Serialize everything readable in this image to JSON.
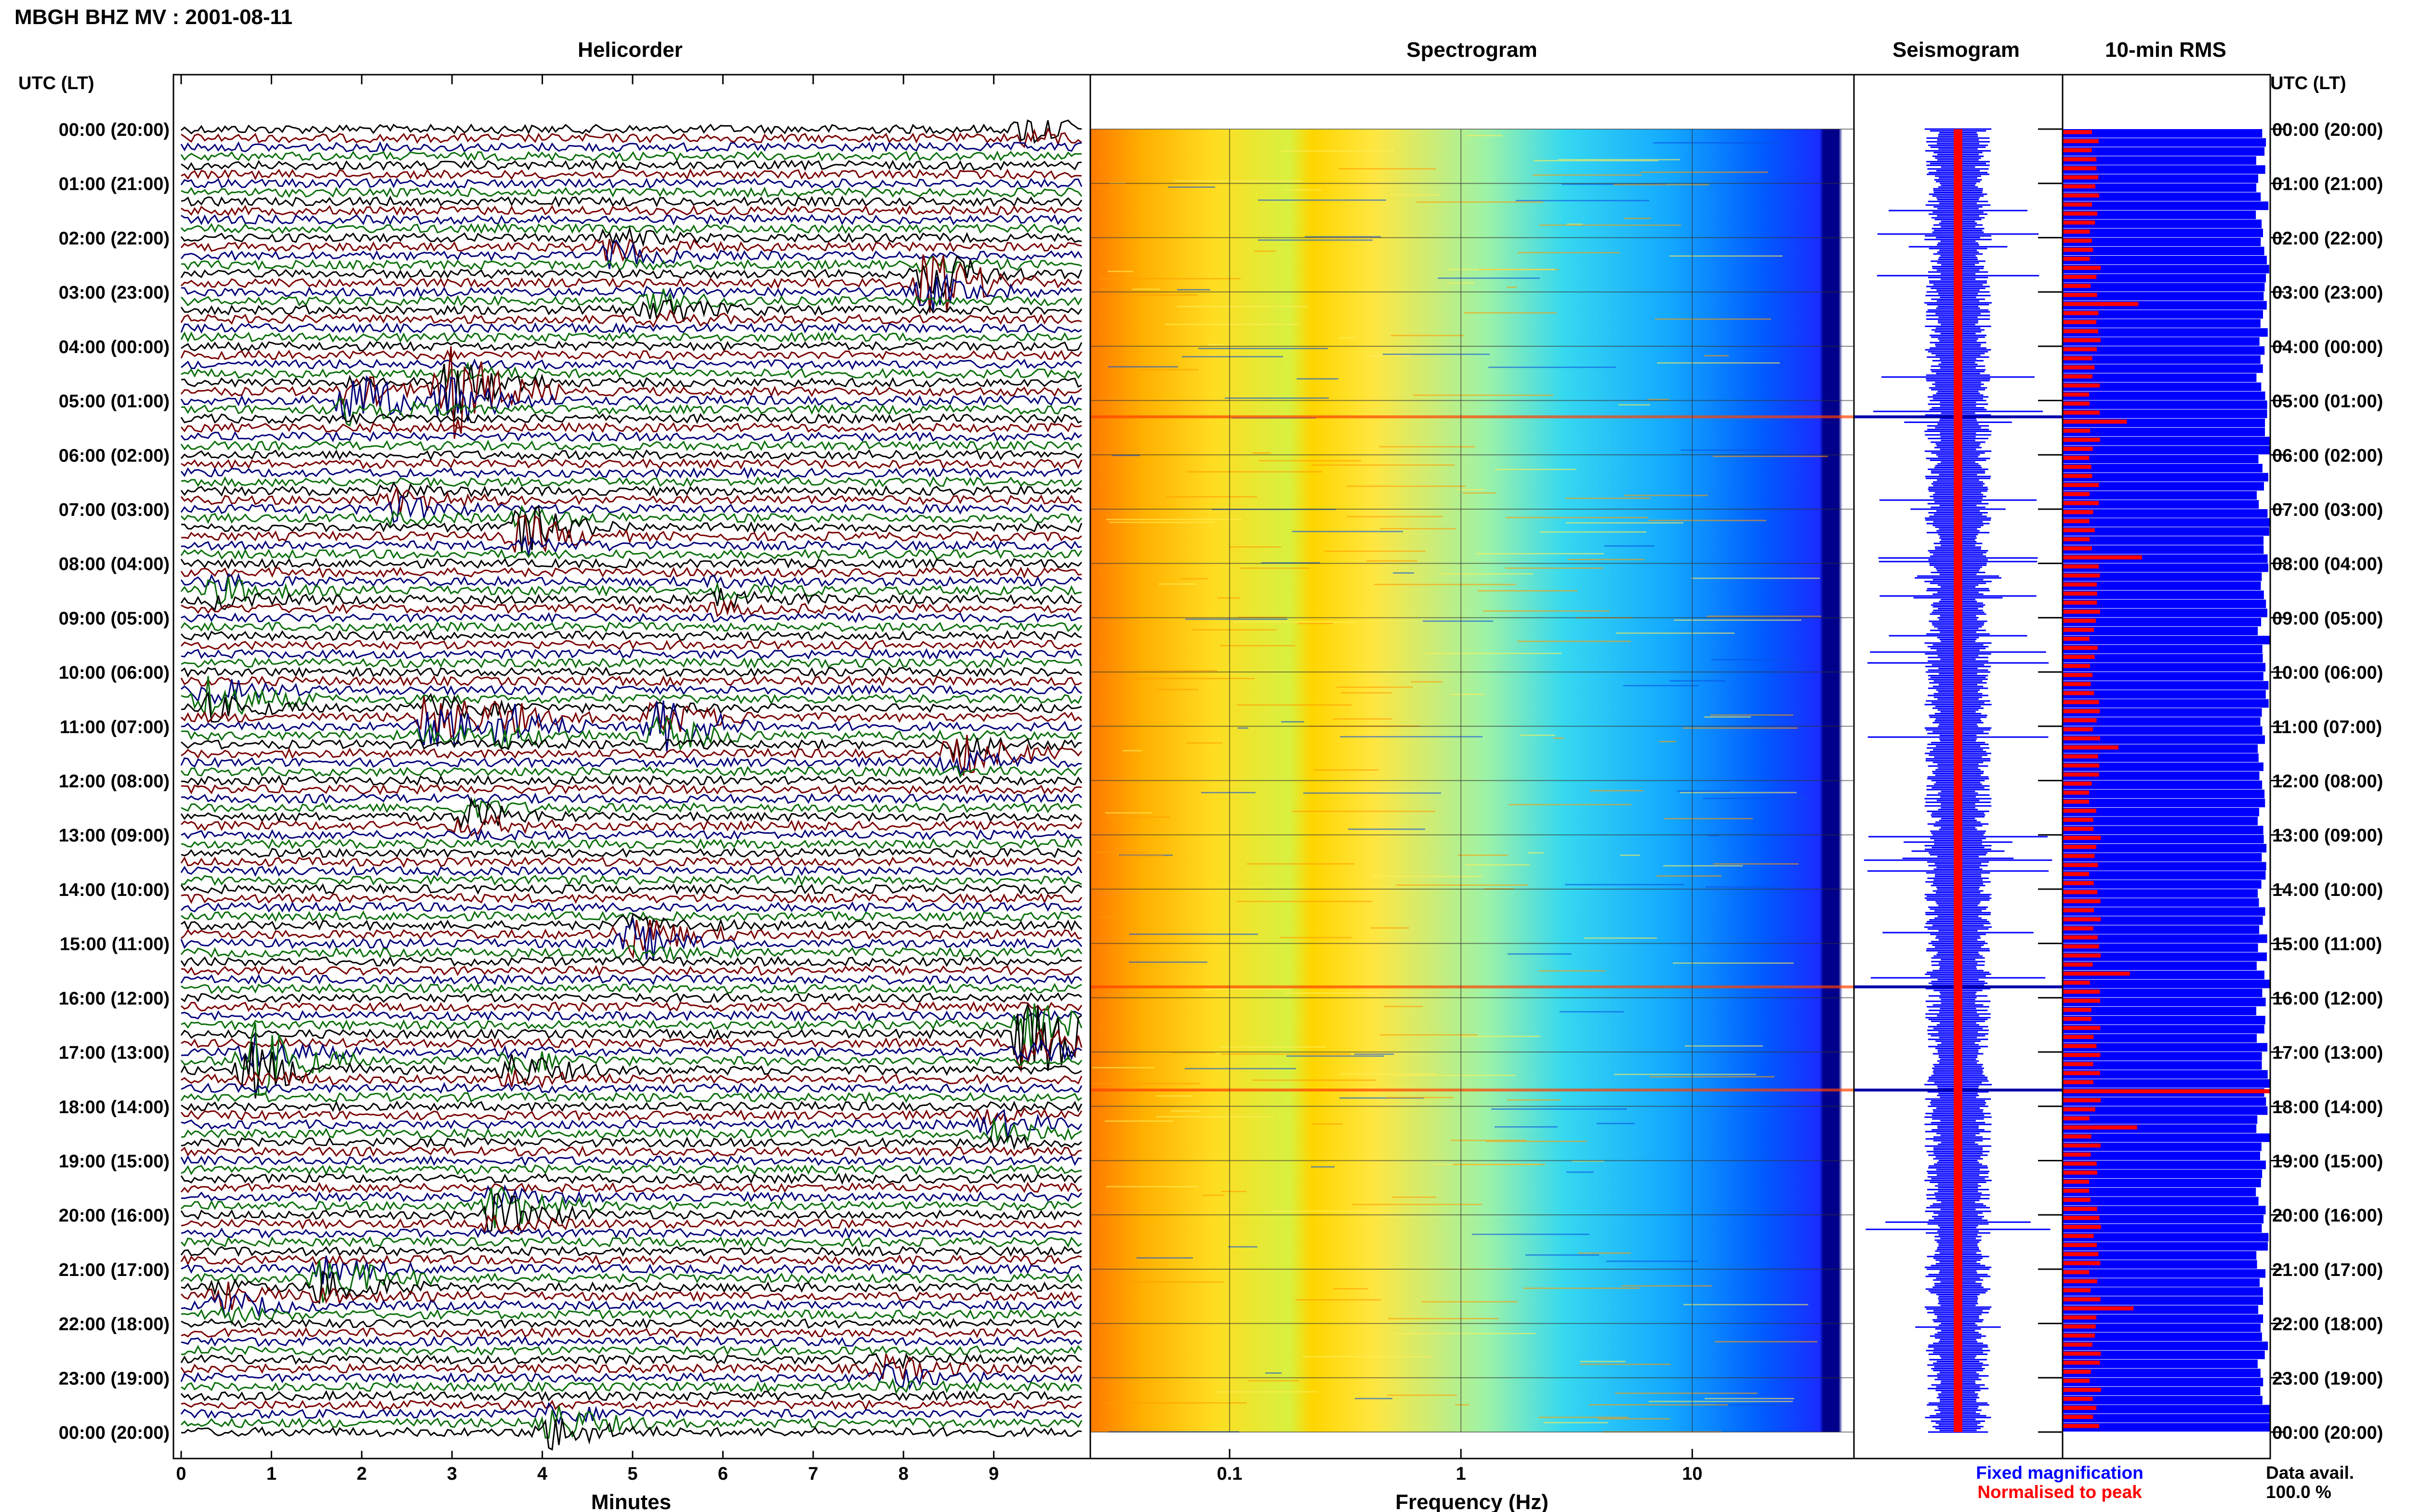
{
  "header": {
    "title": "MBGH BHZ MV : 2001-08-11",
    "left_axis_label": "UTC (LT)",
    "right_axis_label": "UTC (LT)"
  },
  "panels": {
    "helicorder": "Helicorder",
    "spectrogram": "Spectrogram",
    "seismogram": "Seismogram",
    "rms": "10-min RMS"
  },
  "legend": {
    "fixed": "Fixed magnification",
    "normalised": "Normalised to peak",
    "data_avail_label": "Data avail.",
    "data_avail_value": "100.0 %"
  },
  "colors": {
    "trace_cycle": [
      "#000000",
      "#7a0000",
      "#00007a",
      "#0a6e0a"
    ],
    "fixed": "#0000ff",
    "normalised": "#ff0000"
  },
  "chart_data": [
    {
      "type": "line",
      "title": "Helicorder",
      "xlabel": "Minutes",
      "xlim": [
        0,
        10
      ],
      "x_ticks": [
        "0",
        "1",
        "2",
        "3",
        "4",
        "5",
        "6",
        "7",
        "8",
        "9"
      ],
      "y_ticks": [
        "00:00 (20:00)",
        "01:00 (21:00)",
        "02:00 (22:00)",
        "03:00 (23:00)",
        "04:00 (00:00)",
        "05:00 (01:00)",
        "06:00 (02:00)",
        "07:00 (03:00)",
        "08:00 (04:00)",
        "09:00 (05:00)",
        "10:00 (06:00)",
        "11:00 (07:00)",
        "12:00 (08:00)",
        "13:00 (09:00)",
        "14:00 (10:00)",
        "15:00 (11:00)",
        "16:00 (12:00)",
        "17:00 (13:00)",
        "18:00 (14:00)",
        "19:00 (15:00)",
        "20:00 (16:00)",
        "21:00 (17:00)",
        "22:00 (18:00)",
        "23:00 (19:00)",
        "00:00 (20:00)"
      ],
      "rows_per_hour": 6,
      "events": [
        {
          "hour": 0.0,
          "minute": 9.4,
          "amp": 0.6
        },
        {
          "hour": 2.2,
          "minute": 4.8,
          "amp": 0.7
        },
        {
          "hour": 2.8,
          "minute": 8.3,
          "amp": 1.6
        },
        {
          "hour": 3.3,
          "minute": 5.3,
          "amp": 0.6
        },
        {
          "hour": 4.8,
          "minute": 3.0,
          "amp": 2.2
        },
        {
          "hour": 5.0,
          "minute": 1.9,
          "amp": 1.2
        },
        {
          "hour": 6.9,
          "minute": 2.4,
          "amp": 0.6
        },
        {
          "hour": 7.4,
          "minute": 3.8,
          "amp": 1.1
        },
        {
          "hour": 8.5,
          "minute": 0.4,
          "amp": 0.5
        },
        {
          "hour": 8.6,
          "minute": 6.0,
          "amp": 0.5
        },
        {
          "hour": 10.5,
          "minute": 0.3,
          "amp": 0.9
        },
        {
          "hour": 10.9,
          "minute": 2.8,
          "amp": 1.5
        },
        {
          "hour": 11.0,
          "minute": 5.3,
          "amp": 1.3
        },
        {
          "hour": 11.0,
          "minute": 3.6,
          "amp": 0.7
        },
        {
          "hour": 11.5,
          "minute": 8.6,
          "amp": 0.8
        },
        {
          "hour": 12.7,
          "minute": 3.2,
          "amp": 0.6
        },
        {
          "hour": 14.9,
          "minute": 5.0,
          "amp": 1.1
        },
        {
          "hour": 16.7,
          "minute": 9.4,
          "amp": 2.5
        },
        {
          "hour": 17.2,
          "minute": 0.8,
          "amp": 1.7
        },
        {
          "hour": 17.3,
          "minute": 3.7,
          "amp": 0.7
        },
        {
          "hour": 18.4,
          "minute": 9.0,
          "amp": 0.6
        },
        {
          "hour": 19.9,
          "minute": 3.5,
          "amp": 1.2
        },
        {
          "hour": 21.2,
          "minute": 1.6,
          "amp": 1.1
        },
        {
          "hour": 21.6,
          "minute": 0.5,
          "amp": 0.6
        },
        {
          "hour": 22.9,
          "minute": 7.8,
          "amp": 0.6
        },
        {
          "hour": 23.9,
          "minute": 4.1,
          "amp": 0.9
        }
      ]
    },
    {
      "type": "heatmap",
      "title": "Spectrogram",
      "xlabel": "Frequency (Hz)",
      "x_scale": "log",
      "xlim": [
        0.025,
        50
      ],
      "x_ticks": [
        "0.1",
        "1",
        "10"
      ],
      "y": "hour of day UTC, 0 to 24",
      "colormap": [
        "#ff6600",
        "#ffcc00",
        "#ffff33",
        "#66ffcc",
        "#00ccff",
        "#0066ff",
        "#00008b"
      ]
    },
    {
      "type": "bar",
      "title": "Seismogram",
      "series": [
        {
          "name": "Fixed magnification"
        },
        {
          "name": "Normalised to peak"
        }
      ],
      "spike_hours": [
        5.3,
        15.8,
        17.7
      ]
    },
    {
      "type": "bar",
      "title": "10-min RMS",
      "bars_per_hour": 6,
      "series": [
        {
          "name": "Fixed magnification"
        },
        {
          "name": "Normalised to peak"
        }
      ],
      "normalised_peak_hours": [
        3.2,
        5.3,
        7.8,
        11.3,
        15.5,
        17.6,
        18.4,
        21.7
      ]
    }
  ]
}
